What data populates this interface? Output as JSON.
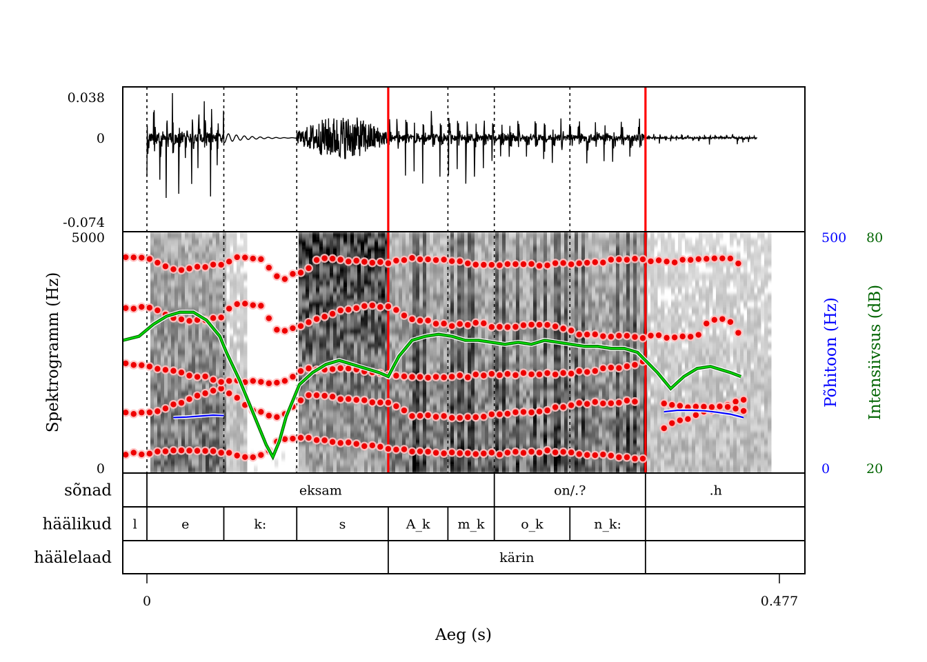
{
  "chart_data": {
    "type": "speech-analysis",
    "waveform": {
      "ylim": [
        -0.074,
        0.038
      ],
      "tick_labels": [
        "0.038",
        "0",
        "-0.074"
      ],
      "segments": [
        {
          "from": 0.0,
          "to": 0.058,
          "amp": 1.0,
          "period": 0.0048,
          "style": "voiced-strong"
        },
        {
          "from": 0.058,
          "to": 0.113,
          "amp": 0.05,
          "period": 0.006,
          "style": "closure"
        },
        {
          "from": 0.113,
          "to": 0.182,
          "amp": 0.55,
          "period": 0.0012,
          "style": "noise"
        },
        {
          "from": 0.182,
          "to": 0.376,
          "amp": 0.65,
          "period": 0.0065,
          "style": "creaky"
        },
        {
          "from": 0.376,
          "to": 0.46,
          "amp": 0.12,
          "period": 0.0042,
          "style": "voiced-weak"
        }
      ]
    },
    "spectrogram": {
      "ylabel": "Spektrogramm (Hz)",
      "ylim": [
        0,
        5000
      ],
      "tick_labels": [
        "5000",
        "0"
      ]
    },
    "formants": [
      {
        "name": "F1",
        "points": [
          [
            -0.016,
            400
          ],
          [
            0.005,
            420
          ],
          [
            0.02,
            460
          ],
          [
            0.04,
            460
          ],
          [
            0.055,
            450
          ],
          [
            0.065,
            400
          ],
          [
            0.075,
            300
          ],
          [
            0.09,
            380
          ],
          [
            0.1,
            700
          ],
          [
            0.12,
            720
          ],
          [
            0.185,
            500
          ],
          [
            0.2,
            450
          ],
          [
            0.24,
            420
          ],
          [
            0.26,
            400
          ],
          [
            0.3,
            450
          ],
          [
            0.33,
            400
          ],
          [
            0.35,
            350
          ],
          [
            0.37,
            320
          ],
          [
            0.376,
            300
          ]
        ]
      },
      {
        "name": "F2",
        "points": [
          [
            -0.016,
            1250
          ],
          [
            0.0,
            1240
          ],
          [
            0.02,
            1400
          ],
          [
            0.04,
            1600
          ],
          [
            0.058,
            1750
          ],
          [
            0.08,
            1300
          ],
          [
            0.1,
            1150
          ],
          [
            0.12,
            1600
          ],
          [
            0.15,
            1550
          ],
          [
            0.182,
            1450
          ],
          [
            0.2,
            1200
          ],
          [
            0.24,
            1150
          ],
          [
            0.26,
            1200
          ],
          [
            0.28,
            1250
          ],
          [
            0.3,
            1300
          ],
          [
            0.33,
            1450
          ],
          [
            0.35,
            1450
          ],
          [
            0.37,
            1500
          ]
        ]
      },
      {
        "name": "F3",
        "points": [
          [
            -0.016,
            2250
          ],
          [
            0.005,
            2200
          ],
          [
            0.02,
            2100
          ],
          [
            0.04,
            2000
          ],
          [
            0.058,
            1900
          ],
          [
            0.08,
            1900
          ],
          [
            0.1,
            1850
          ],
          [
            0.12,
            2150
          ],
          [
            0.15,
            2150
          ],
          [
            0.182,
            2050
          ],
          [
            0.2,
            2000
          ],
          [
            0.24,
            2000
          ],
          [
            0.26,
            2050
          ],
          [
            0.3,
            2050
          ],
          [
            0.33,
            2100
          ],
          [
            0.36,
            2200
          ],
          [
            0.376,
            2300
          ]
        ]
      },
      {
        "name": "F4",
        "points": [
          [
            -0.016,
            3400
          ],
          [
            0.0,
            3450
          ],
          [
            0.02,
            3200
          ],
          [
            0.04,
            3150
          ],
          [
            0.058,
            3250
          ],
          [
            0.065,
            3500
          ],
          [
            0.085,
            3500
          ],
          [
            0.1,
            2900
          ],
          [
            0.12,
            3100
          ],
          [
            0.14,
            3300
          ],
          [
            0.16,
            3450
          ],
          [
            0.182,
            3450
          ],
          [
            0.2,
            3200
          ],
          [
            0.23,
            3050
          ],
          [
            0.25,
            3100
          ],
          [
            0.27,
            3000
          ],
          [
            0.3,
            3100
          ],
          [
            0.33,
            2850
          ],
          [
            0.36,
            2850
          ],
          [
            0.376,
            2800
          ]
        ]
      },
      {
        "name": "F5",
        "points": [
          [
            -0.016,
            4450
          ],
          [
            0.0,
            4470
          ],
          [
            0.02,
            4200
          ],
          [
            0.04,
            4280
          ],
          [
            0.058,
            4320
          ],
          [
            0.07,
            4500
          ],
          [
            0.085,
            4450
          ],
          [
            0.1,
            4000
          ],
          [
            0.12,
            4220
          ],
          [
            0.13,
            4450
          ],
          [
            0.16,
            4380
          ],
          [
            0.182,
            4350
          ],
          [
            0.2,
            4450
          ],
          [
            0.22,
            4430
          ],
          [
            0.26,
            4300
          ],
          [
            0.3,
            4320
          ],
          [
            0.33,
            4350
          ],
          [
            0.36,
            4420
          ],
          [
            0.376,
            4450
          ]
        ]
      },
      {
        "name": "F6",
        "points": [
          [
            0.39,
            950
          ],
          [
            0.405,
            1100
          ],
          [
            0.42,
            1250
          ],
          [
            0.44,
            1450
          ],
          [
            0.45,
            1500
          ],
          [
            0.455,
            1400
          ]
        ]
      },
      {
        "name": "F7",
        "points": [
          [
            0.39,
            1450
          ],
          [
            0.41,
            1350
          ],
          [
            0.425,
            1380
          ],
          [
            0.44,
            1350
          ],
          [
            0.45,
            1300
          ]
        ]
      },
      {
        "name": "F8",
        "points": [
          [
            0.38,
            2850
          ],
          [
            0.4,
            2800
          ],
          [
            0.415,
            2850
          ],
          [
            0.425,
            3200
          ],
          [
            0.44,
            3150
          ],
          [
            0.45,
            2750
          ]
        ]
      },
      {
        "name": "F9",
        "points": [
          [
            0.38,
            4400
          ],
          [
            0.4,
            4380
          ],
          [
            0.415,
            4450
          ],
          [
            0.43,
            4450
          ],
          [
            0.445,
            4450
          ],
          [
            0.45,
            3950
          ]
        ]
      }
    ],
    "pitch": {
      "label": "Põhitoon (Hz)",
      "color": "#0000ff",
      "ylim": [
        0,
        500
      ],
      "tick_labels": [
        "500",
        "0"
      ],
      "series": [
        {
          "x": [
            0.02,
            0.03,
            0.04,
            0.05,
            0.058
          ],
          "y": [
            115,
            116,
            118,
            120,
            119
          ]
        },
        {
          "x": [
            0.39,
            0.4,
            0.41,
            0.42,
            0.43,
            0.44,
            0.45
          ],
          "y": [
            127,
            130,
            130,
            129,
            126,
            122,
            115
          ]
        }
      ]
    },
    "intensity": {
      "label": "Intensiivsus (dB)",
      "color": "#009900",
      "ylim": [
        20,
        80
      ],
      "tick_labels": [
        "80",
        "20"
      ],
      "x": [
        -0.018,
        -0.006,
        0.005,
        0.015,
        0.025,
        0.035,
        0.045,
        0.055,
        0.06,
        0.07,
        0.08,
        0.09,
        0.095,
        0.1,
        0.105,
        0.115,
        0.125,
        0.135,
        0.145,
        0.155,
        0.165,
        0.175,
        0.182,
        0.19,
        0.2,
        0.21,
        0.22,
        0.23,
        0.24,
        0.25,
        0.26,
        0.27,
        0.28,
        0.29,
        0.3,
        0.31,
        0.32,
        0.33,
        0.34,
        0.35,
        0.36,
        0.37,
        0.376,
        0.385,
        0.395,
        0.405,
        0.415,
        0.425,
        0.44,
        0.448
      ],
      "y": [
        53,
        54,
        57,
        59,
        60,
        60,
        58,
        54,
        50,
        43,
        35,
        27,
        24,
        28,
        34,
        42,
        45,
        47,
        48,
        47,
        46,
        45,
        44,
        49,
        53,
        54,
        54.5,
        54,
        53,
        53,
        52.5,
        52,
        52.5,
        52,
        53,
        52.5,
        52,
        51.5,
        51.5,
        51,
        51,
        50,
        48,
        45,
        41,
        44,
        46,
        46.5,
        45,
        44
      ]
    },
    "time_axis": {
      "label": "Aeg (s)",
      "xlim": [
        -0.018,
        0.477
      ],
      "tick_labels": [
        "0",
        "0.477"
      ]
    },
    "red_lines": [
      0.182,
      0.376
    ],
    "dotted_lines": [
      0.0,
      0.058,
      0.113,
      0.227,
      0.262,
      0.319
    ],
    "tiers": [
      {
        "name": "sõnad",
        "intervals": [
          {
            "from": -0.018,
            "to": 0.0,
            "text": ""
          },
          {
            "from": 0.0,
            "to": 0.262,
            "text": "eksam"
          },
          {
            "from": 0.262,
            "to": 0.376,
            "text": "on/.?"
          },
          {
            "from": 0.376,
            "to": 0.482,
            "text": ".h"
          }
        ]
      },
      {
        "name": "häälikud",
        "intervals": [
          {
            "from": -0.018,
            "to": 0.0,
            "text": "l"
          },
          {
            "from": 0.0,
            "to": 0.058,
            "text": "e"
          },
          {
            "from": 0.058,
            "to": 0.113,
            "text": "k:"
          },
          {
            "from": 0.113,
            "to": 0.182,
            "text": "s"
          },
          {
            "from": 0.182,
            "to": 0.227,
            "text": "A_k"
          },
          {
            "from": 0.227,
            "to": 0.262,
            "text": "m_k"
          },
          {
            "from": 0.262,
            "to": 0.319,
            "text": "o_k"
          },
          {
            "from": 0.319,
            "to": 0.376,
            "text": "n_k:"
          },
          {
            "from": 0.376,
            "to": 0.482,
            "text": ""
          }
        ]
      },
      {
        "name": "häälelaad",
        "intervals": [
          {
            "from": -0.018,
            "to": 0.182,
            "text": ""
          },
          {
            "from": 0.182,
            "to": 0.376,
            "text": "kärin"
          },
          {
            "from": 0.376,
            "to": 0.482,
            "text": ""
          }
        ]
      }
    ]
  }
}
